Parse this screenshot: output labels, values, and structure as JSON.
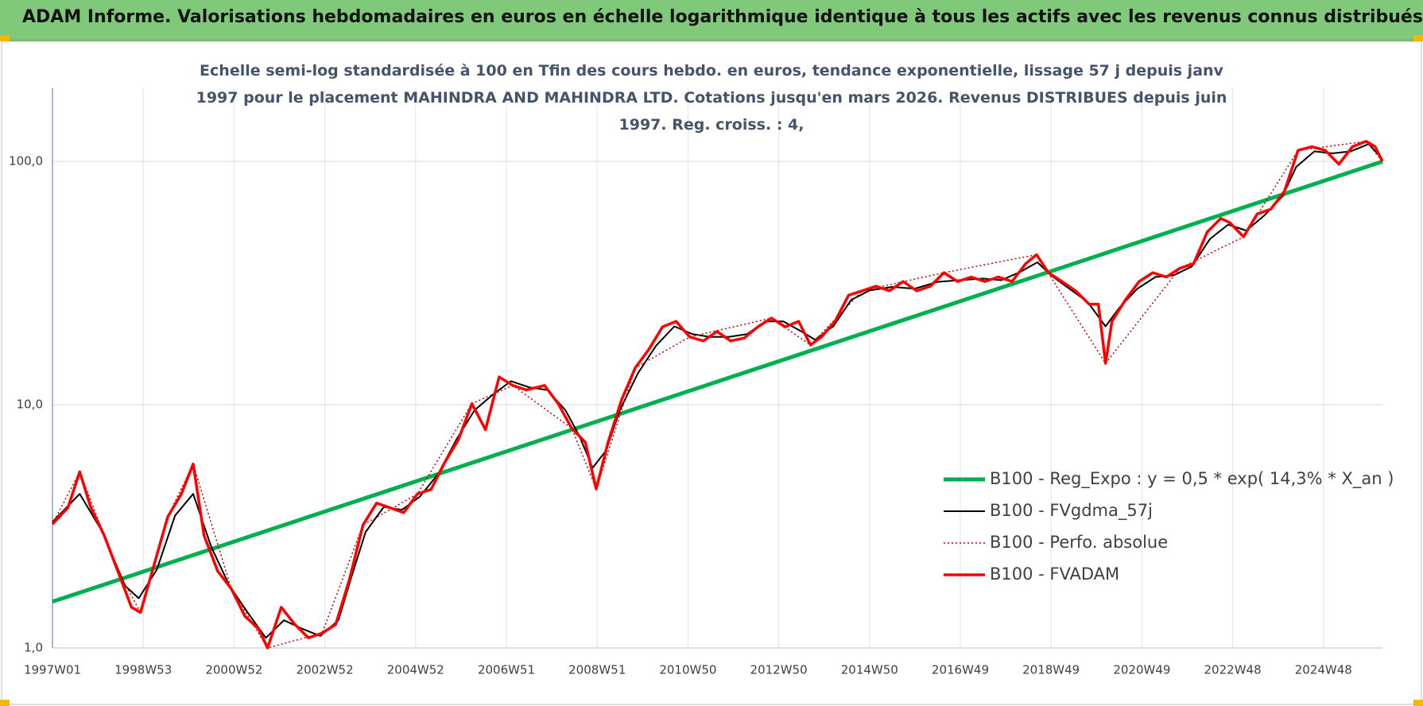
{
  "header": {
    "title": "ADAM Informe. Valorisations hebdomadaires en euros en échelle logarithmique identique à tous les actifs avec les revenus connus distribués"
  },
  "chart_data": {
    "type": "line",
    "title": "Echelle semi-log standardisée à 100 en Tfin des cours hebdo. en euros, tendance exponentielle, lissage 57 j depuis janv 1997 pour le placement MAHINDRA AND MAHINDRA LTD. Cotations jusqu'en mars 2026. Revenus DISTRIBUES depuis juin 1997. Reg. croiss. : 4,",
    "log_y": true,
    "grid": true,
    "legend": "lower right",
    "xlim": [
      1997,
      2026.3
    ],
    "ylim": [
      1,
      200
    ],
    "yticks": [
      {
        "value": 1,
        "label": "1,0"
      },
      {
        "value": 10,
        "label": "10,0"
      },
      {
        "value": 100,
        "label": "100,0"
      }
    ],
    "xticks": [
      {
        "value": 1997,
        "label": "1997W01"
      },
      {
        "value": 1999,
        "label": "1998W53"
      },
      {
        "value": 2001,
        "label": "2000W52"
      },
      {
        "value": 2003,
        "label": "2002W52"
      },
      {
        "value": 2005,
        "label": "2004W52"
      },
      {
        "value": 2007,
        "label": "2006W51"
      },
      {
        "value": 2009,
        "label": "2008W51"
      },
      {
        "value": 2011,
        "label": "2010W50"
      },
      {
        "value": 2013,
        "label": "2012W50"
      },
      {
        "value": 2015,
        "label": "2014W50"
      },
      {
        "value": 2017,
        "label": "2016W49"
      },
      {
        "value": 2019,
        "label": "2018W49"
      },
      {
        "value": 2021,
        "label": "2020W49"
      },
      {
        "value": 2023,
        "label": "2022W48"
      },
      {
        "value": 2025,
        "label": "2024W48"
      }
    ],
    "series": [
      {
        "name": "B100 - Reg_Expo : y = 0,5 * exp( 14,3% *  X_an )",
        "color": "#00b050",
        "width": 5,
        "dash": "solid",
        "x": [
          1997,
          2026.3
        ],
        "values": [
          1.55,
          100
        ]
      },
      {
        "name": "B100 - FVgdma_57j",
        "color": "#000000",
        "width": 2,
        "dash": "solid",
        "x": [
          1997,
          1997.6,
          1998.1,
          1998.6,
          1998.9,
          1999.3,
          1999.7,
          2000.1,
          2000.5,
          2000.9,
          2001.3,
          2001.7,
          2002.1,
          2002.5,
          2002.9,
          2003.3,
          2003.6,
          2003.9,
          2004.3,
          2004.7,
          2005.1,
          2005.5,
          2005.9,
          2006.3,
          2006.7,
          2007.1,
          2007.5,
          2007.9,
          2008.3,
          2008.6,
          2008.9,
          2009.2,
          2009.5,
          2009.9,
          2010.3,
          2010.7,
          2011.1,
          2011.5,
          2011.9,
          2012.3,
          2012.7,
          2013.1,
          2013.5,
          2013.8,
          2014.2,
          2014.6,
          2015.0,
          2015.5,
          2016.0,
          2016.5,
          2017.0,
          2017.5,
          2017.9,
          2018.3,
          2018.7,
          2019.0,
          2019.4,
          2019.8,
          2020.2,
          2020.5,
          2020.9,
          2021.3,
          2021.7,
          2022.1,
          2022.5,
          2022.9,
          2023.3,
          2023.7,
          2024.1,
          2024.4,
          2024.8,
          2025.2,
          2025.6,
          2026.0,
          2026.3
        ],
        "values": [
          3.3,
          4.3,
          3.0,
          1.8,
          1.6,
          2.1,
          3.5,
          4.3,
          2.6,
          1.8,
          1.4,
          1.1,
          1.3,
          1.2,
          1.12,
          1.3,
          2.0,
          3.0,
          3.8,
          3.7,
          4.2,
          5.2,
          7.2,
          9.5,
          11.0,
          12.5,
          11.8,
          11.5,
          9.5,
          7.5,
          5.5,
          6.5,
          9.5,
          13.5,
          17.5,
          21,
          19.5,
          19,
          19,
          19.5,
          22,
          22,
          20,
          18.5,
          21,
          27,
          29.5,
          30.5,
          30,
          32,
          32.5,
          33,
          32.5,
          35,
          38.5,
          34,
          30,
          26.5,
          21,
          25,
          30,
          33.5,
          34,
          37,
          48,
          55,
          52,
          60,
          72,
          95,
          110,
          108,
          110,
          118,
          102
        ]
      },
      {
        "name": "B100 - Perfo. absolue",
        "color": "#c00000",
        "width": 1.5,
        "dash": "dotted",
        "x": [
          1997,
          1997.6,
          1998.44,
          1998.94,
          1999.54,
          2000.1,
          2000.94,
          2001.74,
          2002.94,
          2003.84,
          2005.04,
          2006.24,
          2007.14,
          2008.44,
          2008.98,
          2009.84,
          2011.04,
          2012.84,
          2013.7,
          2014.84,
          2016.64,
          2018.68,
          2020.2,
          2021.84,
          2023.24,
          2024.44,
          2025.94,
          2026.3
        ],
        "values": [
          3.23,
          5.3,
          2.07,
          1.4,
          3.46,
          5.7,
          1.75,
          1.0,
          1.15,
          3.2,
          4.3,
          10.1,
          12.0,
          8.0,
          4.5,
          14.2,
          19,
          22.7,
          17.6,
          29.4,
          34.9,
          41.4,
          14.8,
          36.4,
          49,
          111,
          121,
          100
        ]
      },
      {
        "name": "B100 - FVADAM",
        "color": "#ff0000",
        "width": 3.5,
        "dash": "solid",
        "x": [
          1997,
          1997.34,
          1997.6,
          1997.84,
          1998.14,
          1998.44,
          1998.74,
          1998.94,
          1999.24,
          1999.54,
          1999.84,
          2000.1,
          2000.34,
          2000.64,
          2000.94,
          2001.24,
          2001.54,
          2001.74,
          2002.04,
          2002.34,
          2002.64,
          2002.94,
          2003.24,
          2003.54,
          2003.84,
          2004.14,
          2004.44,
          2004.74,
          2005.04,
          2005.34,
          2005.64,
          2005.94,
          2006.24,
          2006.54,
          2006.84,
          2007.14,
          2007.44,
          2007.84,
          2008.14,
          2008.44,
          2008.74,
          2008.98,
          2009.24,
          2009.54,
          2009.84,
          2010.14,
          2010.44,
          2010.74,
          2011.04,
          2011.34,
          2011.64,
          2011.94,
          2012.24,
          2012.54,
          2012.84,
          2013.14,
          2013.44,
          2013.7,
          2013.94,
          2014.24,
          2014.54,
          2014.84,
          2015.14,
          2015.44,
          2015.74,
          2016.04,
          2016.34,
          2016.64,
          2016.94,
          2017.24,
          2017.54,
          2017.84,
          2018.14,
          2018.44,
          2018.68,
          2018.94,
          2019.24,
          2019.54,
          2019.84,
          2020.04,
          2020.2,
          2020.34,
          2020.64,
          2020.94,
          2021.24,
          2021.54,
          2021.84,
          2022.14,
          2022.44,
          2022.74,
          2022.94,
          2023.24,
          2023.54,
          2023.84,
          2024.14,
          2024.44,
          2024.74,
          2025.04,
          2025.34,
          2025.64,
          2025.94,
          2026.14,
          2026.3
        ],
        "values": [
          3.23,
          3.77,
          5.3,
          3.8,
          2.9,
          2.07,
          1.47,
          1.4,
          2.2,
          3.46,
          4.3,
          5.7,
          2.9,
          2.07,
          1.75,
          1.35,
          1.2,
          1.0,
          1.47,
          1.25,
          1.1,
          1.15,
          1.25,
          1.9,
          3.2,
          3.94,
          3.77,
          3.6,
          4.3,
          4.48,
          5.78,
          7.16,
          10.1,
          7.9,
          13.0,
          12.0,
          11.5,
          12.0,
          10.1,
          8.0,
          7.0,
          4.5,
          7.0,
          10.5,
          14.2,
          16.9,
          20.9,
          22,
          19,
          18.3,
          20,
          18.3,
          18.8,
          20.9,
          22.7,
          20.9,
          22,
          17.6,
          19,
          22,
          28.2,
          29.4,
          30.7,
          29.4,
          32.1,
          29.4,
          30.7,
          34.9,
          32.1,
          33.5,
          32.1,
          33.5,
          32.1,
          38,
          41.4,
          34.9,
          32.1,
          29.4,
          25.9,
          25.9,
          14.8,
          22,
          27,
          32.1,
          34.9,
          33.5,
          36.4,
          38,
          51.3,
          58.3,
          56,
          49,
          60.8,
          63.6,
          75.4,
          111,
          115,
          111,
          97.5,
          115,
          121,
          115,
          100
        ]
      }
    ]
  }
}
